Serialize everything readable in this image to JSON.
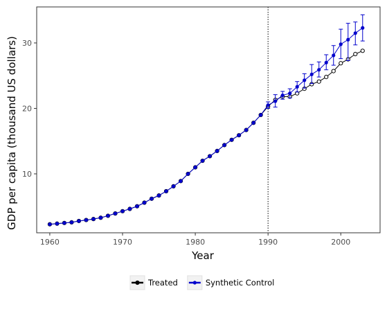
{
  "chart_data": {
    "type": "line",
    "title": "",
    "xlabel": "Year",
    "ylabel": "GDP per capita (thousand US dollars)",
    "xlim": [
      1958.2,
      2005.4
    ],
    "ylim": [
      1.0,
      35.5
    ],
    "xticks": [
      1960,
      1970,
      1980,
      1990,
      2000
    ],
    "yticks": [
      10,
      20,
      30
    ],
    "grid": false,
    "legend_position": "bottom",
    "vline": {
      "x": 1990,
      "style": "dotted"
    },
    "x": [
      1960,
      1961,
      1962,
      1963,
      1964,
      1965,
      1966,
      1967,
      1968,
      1969,
      1970,
      1971,
      1972,
      1973,
      1974,
      1975,
      1976,
      1977,
      1978,
      1979,
      1980,
      1981,
      1982,
      1983,
      1984,
      1985,
      1986,
      1987,
      1988,
      1989,
      1990,
      1991,
      1992,
      1993,
      1994,
      1995,
      1996,
      1997,
      1998,
      1999,
      2000,
      2001,
      2002,
      2003
    ],
    "series": [
      {
        "name": "Treated",
        "color": "#000000",
        "marker": "open-circle",
        "values": [
          2.3,
          2.4,
          2.5,
          2.6,
          2.8,
          2.95,
          3.1,
          3.3,
          3.6,
          3.95,
          4.3,
          4.65,
          5.05,
          5.6,
          6.2,
          6.7,
          7.35,
          8.1,
          8.9,
          10.0,
          11.0,
          12.0,
          12.7,
          13.5,
          14.4,
          15.2,
          15.9,
          16.7,
          17.8,
          19.0,
          20.3,
          21.3,
          21.8,
          21.8,
          22.3,
          23.0,
          23.7,
          24.1,
          24.8,
          25.7,
          26.9,
          27.5,
          28.3,
          28.8
        ]
      },
      {
        "name": "Synthetic Control",
        "color": "#0000cc",
        "marker": "filled-circle",
        "values": [
          2.3,
          2.4,
          2.5,
          2.6,
          2.8,
          2.95,
          3.1,
          3.3,
          3.6,
          3.95,
          4.3,
          4.65,
          5.05,
          5.6,
          6.2,
          6.7,
          7.35,
          8.1,
          8.9,
          10.0,
          11.0,
          12.0,
          12.7,
          13.5,
          14.4,
          15.2,
          15.9,
          16.7,
          17.8,
          19.0,
          20.5,
          21.1,
          22.0,
          22.3,
          23.3,
          24.3,
          25.2,
          25.9,
          27.0,
          28.1,
          29.8,
          30.5,
          31.5,
          32.3
        ],
        "error_low": [
          null,
          null,
          null,
          null,
          null,
          null,
          null,
          null,
          null,
          null,
          null,
          null,
          null,
          null,
          null,
          null,
          null,
          null,
          null,
          null,
          null,
          null,
          null,
          null,
          null,
          null,
          null,
          null,
          null,
          null,
          20.0,
          20.2,
          21.4,
          21.6,
          22.5,
          23.1,
          23.8,
          24.8,
          25.9,
          26.6,
          27.6,
          27.3,
          29.7,
          30.3
        ],
        "error_high": [
          null,
          null,
          null,
          null,
          null,
          null,
          null,
          null,
          null,
          null,
          null,
          null,
          null,
          null,
          null,
          null,
          null,
          null,
          null,
          null,
          null,
          null,
          null,
          null,
          null,
          null,
          null,
          null,
          null,
          null,
          21.0,
          22.1,
          22.6,
          23.0,
          24.1,
          25.3,
          26.7,
          27.1,
          28.2,
          29.6,
          32.1,
          33.0,
          33.2,
          34.3
        ]
      }
    ]
  }
}
